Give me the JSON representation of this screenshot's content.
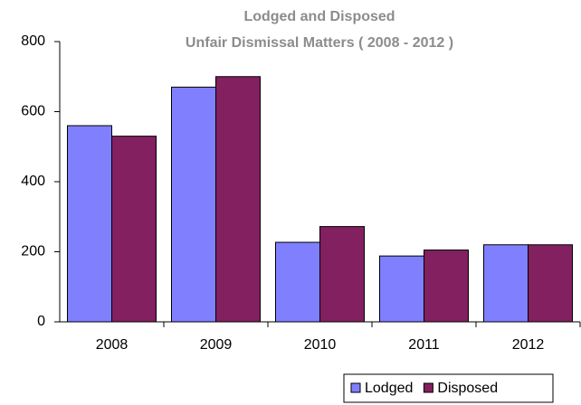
{
  "chart_data": {
    "type": "bar",
    "title": "Lodged and Disposed",
    "subtitle": "Unfair Dismissal Matters ( 2008 - 2012 )",
    "categories": [
      "2008",
      "2009",
      "2010",
      "2011",
      "2012"
    ],
    "series": [
      {
        "name": "Lodged",
        "color": "#8080ff",
        "values": [
          560,
          670,
          227,
          188,
          220
        ]
      },
      {
        "name": "Disposed",
        "color": "#822060",
        "values": [
          530,
          700,
          272,
          205,
          220
        ]
      }
    ],
    "ylim": [
      0,
      800
    ],
    "yticks": [
      0,
      200,
      400,
      600,
      800
    ],
    "grid": false,
    "legend": "bottom-right"
  }
}
